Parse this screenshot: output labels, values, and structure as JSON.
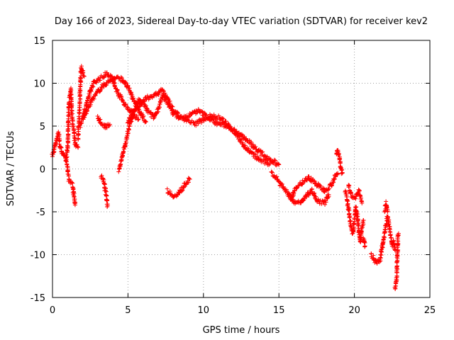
{
  "chart_data": {
    "type": "scatter",
    "title": "Day 166 of 2023, Sidereal Day-to-day VTEC variation (SDTVAR) for receiver kev2",
    "xlabel": "GPS time / hours",
    "ylabel": "SDTVAR / TECUs",
    "xlim": [
      0,
      25
    ],
    "ylim": [
      -15,
      15
    ],
    "x_ticks": [
      0,
      5,
      10,
      15,
      20,
      25
    ],
    "y_ticks": [
      -15,
      -10,
      -5,
      0,
      5,
      10,
      15
    ],
    "x_tick_labels": [
      "0",
      "5",
      "10",
      "15",
      "20",
      "25"
    ],
    "y_tick_labels": [
      "-15",
      "-10",
      "-5",
      "0",
      "5",
      "10",
      "15"
    ],
    "grid": true,
    "marker": "+",
    "series": [
      {
        "name": "SDTVAR",
        "color": "#ff0000",
        "traces": [
          [
            [
              0.0,
              1.5
            ],
            [
              0.2,
              3.0
            ],
            [
              0.4,
              4.3
            ],
            [
              0.5,
              2.5
            ],
            [
              0.7,
              1.8
            ],
            [
              0.9,
              1.0
            ],
            [
              1.0,
              2.6
            ],
            [
              1.1,
              7.8
            ],
            [
              1.2,
              9.2
            ],
            [
              1.3,
              6.0
            ],
            [
              1.5,
              3.0
            ],
            [
              1.7,
              2.5
            ]
          ],
          [
            [
              0.9,
              0.7
            ],
            [
              1.0,
              0.3
            ],
            [
              1.1,
              -1.4
            ],
            [
              1.3,
              -1.8
            ],
            [
              1.4,
              -2.8
            ],
            [
              1.5,
              -4.2
            ]
          ],
          [
            [
              1.7,
              3.5
            ],
            [
              1.9,
              11.9
            ],
            [
              2.0,
              11.2
            ],
            [
              2.1,
              10.8
            ]
          ],
          [
            [
              2.0,
              6.0
            ],
            [
              2.4,
              8.5
            ],
            [
              2.7,
              10.0
            ],
            [
              3.0,
              10.4
            ],
            [
              3.4,
              10.8
            ],
            [
              3.6,
              11.2
            ],
            [
              3.9,
              10.7
            ],
            [
              4.3,
              9.0
            ],
            [
              4.8,
              7.5
            ],
            [
              5.3,
              6.5
            ],
            [
              5.7,
              5.8
            ]
          ],
          [
            [
              1.8,
              5.0
            ],
            [
              2.2,
              6.5
            ],
            [
              2.6,
              8.0
            ],
            [
              3.0,
              9.0
            ],
            [
              3.4,
              9.8
            ],
            [
              3.8,
              10.3
            ],
            [
              4.2,
              10.6
            ],
            [
              4.6,
              10.5
            ],
            [
              5.0,
              9.5
            ],
            [
              5.4,
              8.0
            ],
            [
              5.8,
              6.5
            ],
            [
              6.2,
              5.5
            ]
          ],
          [
            [
              3.0,
              6.0
            ],
            [
              3.2,
              5.3
            ],
            [
              3.6,
              4.9
            ],
            [
              3.8,
              5.2
            ]
          ],
          [
            [
              3.2,
              -0.8
            ],
            [
              3.35,
              -1.2
            ],
            [
              3.5,
              -2.5
            ],
            [
              3.6,
              -3.5
            ],
            [
              3.65,
              -4.3
            ]
          ],
          [
            [
              4.4,
              -0.2
            ],
            [
              4.5,
              0.5
            ],
            [
              4.7,
              2.0
            ],
            [
              4.9,
              3.5
            ],
            [
              5.1,
              5.0
            ],
            [
              5.4,
              6.8
            ],
            [
              5.7,
              8.0
            ],
            [
              6.0,
              7.6
            ],
            [
              6.3,
              6.8
            ],
            [
              6.7,
              6.0
            ],
            [
              7.0,
              7.0
            ],
            [
              7.3,
              8.5
            ],
            [
              7.6,
              7.8
            ],
            [
              8.0,
              6.5
            ],
            [
              8.4,
              6.0
            ],
            [
              8.8,
              6.0
            ],
            [
              9.2,
              6.4
            ],
            [
              9.6,
              6.8
            ],
            [
              10.0,
              6.4
            ],
            [
              10.4,
              5.9
            ],
            [
              10.8,
              5.4
            ],
            [
              11.2,
              5.2
            ],
            [
              11.6,
              5.0
            ],
            [
              12.0,
              4.5
            ],
            [
              12.4,
              3.5
            ],
            [
              12.8,
              2.5
            ],
            [
              13.2,
              1.8
            ],
            [
              13.6,
              1.2
            ],
            [
              14.0,
              0.8
            ],
            [
              14.4,
              0.6
            ]
          ],
          [
            [
              5.0,
              5.5
            ],
            [
              5.4,
              6.8
            ],
            [
              5.8,
              7.5
            ],
            [
              6.2,
              8.2
            ],
            [
              6.6,
              8.5
            ],
            [
              7.0,
              8.8
            ],
            [
              7.3,
              9.2
            ],
            [
              7.6,
              8.2
            ],
            [
              8.0,
              6.8
            ],
            [
              8.5,
              6.0
            ],
            [
              9.0,
              5.5
            ],
            [
              9.5,
              5.3
            ],
            [
              10.0,
              5.8
            ],
            [
              10.5,
              6.2
            ],
            [
              11.0,
              6.0
            ],
            [
              11.4,
              5.5
            ],
            [
              11.8,
              4.8
            ],
            [
              12.2,
              4.3
            ],
            [
              12.6,
              3.8
            ],
            [
              13.0,
              3.2
            ],
            [
              13.5,
              2.3
            ],
            [
              14.0,
              1.6
            ],
            [
              14.5,
              1.0
            ],
            [
              15.0,
              0.5
            ]
          ],
          [
            [
              7.6,
              -2.5
            ],
            [
              7.9,
              -3.0
            ],
            [
              8.2,
              -3.2
            ],
            [
              8.5,
              -2.5
            ],
            [
              8.8,
              -1.7
            ],
            [
              9.1,
              -1.2
            ]
          ],
          [
            [
              14.5,
              -0.5
            ],
            [
              14.8,
              -1.0
            ],
            [
              15.2,
              -2.0
            ],
            [
              15.5,
              -2.5
            ],
            [
              15.8,
              -3.5
            ],
            [
              16.2,
              -2.0
            ],
            [
              16.6,
              -1.5
            ],
            [
              17.0,
              -1.0
            ],
            [
              17.5,
              -1.8
            ],
            [
              18.0,
              -2.5
            ],
            [
              18.4,
              -2.0
            ],
            [
              18.7,
              -1.0
            ],
            [
              18.9,
              -0.5
            ]
          ],
          [
            [
              15.6,
              -3.0
            ],
            [
              16.0,
              -3.8
            ],
            [
              16.4,
              -4.0
            ],
            [
              16.8,
              -3.2
            ],
            [
              17.2,
              -2.5
            ],
            [
              17.6,
              -3.8
            ],
            [
              18.0,
              -4.0
            ],
            [
              18.3,
              -3.0
            ]
          ],
          [
            [
              18.8,
              1.5
            ],
            [
              18.9,
              2.2
            ],
            [
              19.0,
              1.5
            ],
            [
              19.1,
              0.0
            ],
            [
              19.2,
              -0.5
            ]
          ],
          [
            [
              19.4,
              -2.5
            ],
            [
              19.6,
              -4.5
            ],
            [
              19.7,
              -6.0
            ],
            [
              19.8,
              -7.0
            ],
            [
              19.9,
              -7.5
            ],
            [
              20.0,
              -6.0
            ],
            [
              20.1,
              -4.5
            ],
            [
              20.2,
              -5.5
            ],
            [
              20.3,
              -7.5
            ],
            [
              20.4,
              -8.5
            ],
            [
              20.5,
              -7.0
            ],
            [
              20.6,
              -6.0
            ]
          ],
          [
            [
              19.6,
              -2.0
            ],
            [
              19.8,
              -3.0
            ],
            [
              20.0,
              -3.5
            ],
            [
              20.3,
              -2.5
            ],
            [
              20.5,
              -4.0
            ]
          ],
          [
            [
              20.6,
              -8.0
            ],
            [
              20.7,
              -9.0
            ]
          ],
          [
            [
              21.1,
              -10.0
            ],
            [
              21.3,
              -10.5
            ],
            [
              21.5,
              -11.0
            ],
            [
              21.7,
              -10.5
            ],
            [
              21.8,
              -9.5
            ],
            [
              21.9,
              -8.5
            ],
            [
              22.0,
              -7.5
            ],
            [
              22.1,
              -6.5
            ],
            [
              22.2,
              -5.5
            ],
            [
              22.3,
              -6.5
            ],
            [
              22.4,
              -8.0
            ],
            [
              22.5,
              -9.0
            ],
            [
              22.6,
              -8.5
            ],
            [
              22.7,
              -9.5
            ]
          ],
          [
            [
              22.0,
              -4.8
            ],
            [
              22.1,
              -4.0
            ],
            [
              22.2,
              -5.0
            ]
          ],
          [
            [
              22.9,
              -7.5
            ],
            [
              22.8,
              -12.8
            ],
            [
              22.75,
              -13.5
            ],
            [
              22.7,
              -14.0
            ]
          ]
        ]
      }
    ]
  }
}
